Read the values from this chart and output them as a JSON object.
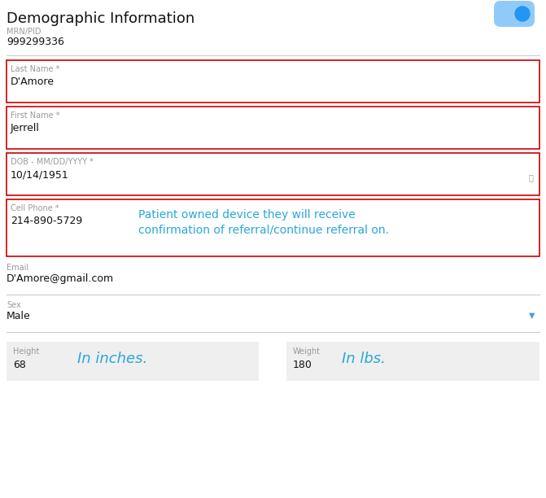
{
  "title": "Demographic Information",
  "mrn_label": "MRN/PID",
  "mrn_value": "999299336",
  "toggle_color_light": "#90CAF9",
  "toggle_color_dark": "#2196F3",
  "fields": [
    {
      "label": "Last Name *",
      "value": "D'Amore",
      "has_icon": false
    },
    {
      "label": "First Name *",
      "value": "Jerrell",
      "has_icon": false
    },
    {
      "label": "DOB - MM/DD/YYYY *",
      "value": "10/14/1951",
      "has_icon": true
    },
    {
      "label": "Cell Phone *",
      "value": "214-890-5729",
      "has_icon": false,
      "annotation_line1": "Patient owned device they will receive",
      "annotation_line2": "confirmation of referral/continue referral on."
    }
  ],
  "plain_fields": [
    {
      "label": "Email",
      "value": "D'Amore@gmail.com",
      "has_dropdown": false
    },
    {
      "label": "Sex",
      "value": "Male",
      "has_dropdown": true
    }
  ],
  "height_label": "Height",
  "height_value": "68",
  "height_annotation": "In inches.",
  "weight_label": "Weight",
  "weight_value": "180",
  "weight_annotation": "In lbs.",
  "bg_color": "#ffffff",
  "field_bg": "#ffffff",
  "gray_field_bg": "#efefef",
  "label_color": "#999999",
  "value_color": "#111111",
  "red_border": "#cc0000",
  "gray_border": "#cccccc",
  "blue_annotation": "#29a8d8",
  "dropdown_color": "#5b9bd5",
  "title_fontsize": 13,
  "label_fontsize": 7,
  "value_fontsize": 9,
  "annotation_fontsize": 10
}
